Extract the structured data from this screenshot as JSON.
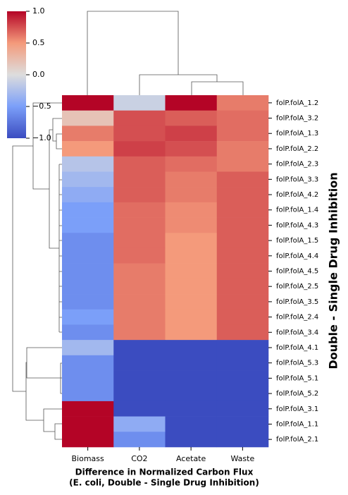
{
  "chart_data": {
    "type": "heatmap",
    "columns": [
      "Biomass",
      "CO2",
      "Acetate",
      "Waste"
    ],
    "rows": [
      "folP.folA_1.2",
      "folP.folA_3.2",
      "folP.folA_1.3",
      "folP.folA_2.2",
      "folP.folA_2.3",
      "folP.folA_3.3",
      "folP.folA_4.2",
      "folP.folA_1.4",
      "folP.folA_4.3",
      "folP.folA_1.5",
      "folP.folA_4.4",
      "folP.folA_4.5",
      "folP.folA_2.5",
      "folP.folA_3.5",
      "folP.folA_2.4",
      "folP.folA_3.4",
      "folP.folA_4.1",
      "folP.folA_5.3",
      "folP.folA_5.1",
      "folP.folA_5.2",
      "folP.folA_3.1",
      "folP.folA_1.1",
      "folP.folA_2.1"
    ],
    "values": [
      [
        1.0,
        -0.1,
        1.0,
        0.6
      ],
      [
        0.2,
        0.75,
        0.7,
        0.65
      ],
      [
        0.6,
        0.75,
        0.8,
        0.65
      ],
      [
        0.5,
        0.8,
        0.75,
        0.6
      ],
      [
        -0.2,
        0.7,
        0.65,
        0.6
      ],
      [
        -0.3,
        0.7,
        0.6,
        0.7
      ],
      [
        -0.4,
        0.7,
        0.6,
        0.7
      ],
      [
        -0.5,
        0.65,
        0.55,
        0.7
      ],
      [
        -0.5,
        0.65,
        0.55,
        0.7
      ],
      [
        -0.6,
        0.65,
        0.5,
        0.7
      ],
      [
        -0.6,
        0.65,
        0.5,
        0.7
      ],
      [
        -0.6,
        0.6,
        0.5,
        0.7
      ],
      [
        -0.6,
        0.6,
        0.5,
        0.7
      ],
      [
        -0.6,
        0.6,
        0.5,
        0.7
      ],
      [
        -0.5,
        0.6,
        0.5,
        0.7
      ],
      [
        -0.6,
        0.6,
        0.5,
        0.7
      ],
      [
        -0.3,
        -1.0,
        -1.0,
        -1.0
      ],
      [
        -0.6,
        -1.0,
        -1.0,
        -1.0
      ],
      [
        -0.6,
        -1.0,
        -1.0,
        -1.0
      ],
      [
        -0.6,
        -1.0,
        -1.0,
        -1.0
      ],
      [
        1.0,
        -1.0,
        -1.0,
        -1.0
      ],
      [
        1.0,
        -0.4,
        -1.0,
        -1.0
      ],
      [
        1.0,
        -0.6,
        -1.0,
        -1.0
      ]
    ],
    "colormap": [
      "#3b4cc0",
      "#7b9ff9",
      "#dddddd",
      "#f49a7b",
      "#b40426"
    ],
    "clim": [
      -1,
      1
    ],
    "cticks": [
      {
        "value": 1,
        "label": "1.0"
      },
      {
        "value": 0.5,
        "label": "0.5"
      },
      {
        "value": 0,
        "label": "0.0"
      },
      {
        "value": -0.5,
        "label": "−0.5"
      },
      {
        "value": -1,
        "label": "−1.0"
      }
    ],
    "xlabel": [
      "Difference in Normalized Carbon Flux",
      "(E. coli, Double - Single Drug Inhibition)"
    ],
    "ylabel": "Double - Single Drug Inhibition"
  }
}
